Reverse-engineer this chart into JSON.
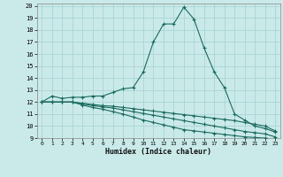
{
  "xlabel": "Humidex (Indice chaleur)",
  "bg_color": "#caeaea",
  "grid_color": "#aad4d4",
  "line_color": "#1a6b5e",
  "xlim": [
    -0.5,
    23.5
  ],
  "ylim": [
    9,
    20.2
  ],
  "xticks": [
    0,
    1,
    2,
    3,
    4,
    5,
    6,
    7,
    8,
    9,
    10,
    11,
    12,
    13,
    14,
    15,
    16,
    17,
    18,
    19,
    20,
    21,
    22,
    23
  ],
  "yticks": [
    9,
    10,
    11,
    12,
    13,
    14,
    15,
    16,
    17,
    18,
    19,
    20
  ],
  "series1_x": [
    0,
    1,
    2,
    3,
    4,
    5,
    6,
    7,
    8,
    9,
    10,
    11,
    12,
    13,
    14,
    15,
    16,
    17,
    18,
    19,
    20,
    21,
    22,
    23
  ],
  "series1_y": [
    12.0,
    12.5,
    12.3,
    12.4,
    12.4,
    12.5,
    12.5,
    12.8,
    13.1,
    13.2,
    14.5,
    17.0,
    18.5,
    18.5,
    19.9,
    18.9,
    16.5,
    14.5,
    13.2,
    11.0,
    10.5,
    10.0,
    9.8,
    9.5
  ],
  "series2_x": [
    0,
    1,
    2,
    3,
    4,
    5,
    6,
    7,
    8,
    9,
    10,
    11,
    12,
    13,
    14,
    15,
    16,
    17,
    18,
    19,
    20,
    21,
    22,
    23
  ],
  "series2_y": [
    12.0,
    12.0,
    12.0,
    12.0,
    11.9,
    11.8,
    11.7,
    11.65,
    11.55,
    11.45,
    11.35,
    11.25,
    11.15,
    11.05,
    10.95,
    10.85,
    10.75,
    10.65,
    10.55,
    10.45,
    10.3,
    10.15,
    10.0,
    9.6
  ],
  "series3_x": [
    0,
    1,
    2,
    3,
    4,
    5,
    6,
    7,
    8,
    9,
    10,
    11,
    12,
    13,
    14,
    15,
    16,
    17,
    18,
    19,
    20,
    21,
    22,
    23
  ],
  "series3_y": [
    12.0,
    12.0,
    12.0,
    12.0,
    11.85,
    11.7,
    11.6,
    11.5,
    11.35,
    11.2,
    11.05,
    10.9,
    10.75,
    10.6,
    10.45,
    10.3,
    10.15,
    10.0,
    9.85,
    9.7,
    9.55,
    9.45,
    9.35,
    9.1
  ],
  "series4_x": [
    0,
    1,
    2,
    3,
    4,
    5,
    6,
    7,
    8,
    9,
    10,
    11,
    12,
    13,
    14,
    15,
    16,
    17,
    18,
    19,
    20,
    21,
    22,
    23
  ],
  "series4_y": [
    12.0,
    12.0,
    12.0,
    12.0,
    11.75,
    11.55,
    11.4,
    11.2,
    11.0,
    10.75,
    10.5,
    10.3,
    10.1,
    9.9,
    9.7,
    9.6,
    9.5,
    9.4,
    9.3,
    9.2,
    9.1,
    9.05,
    9.0,
    8.9
  ]
}
